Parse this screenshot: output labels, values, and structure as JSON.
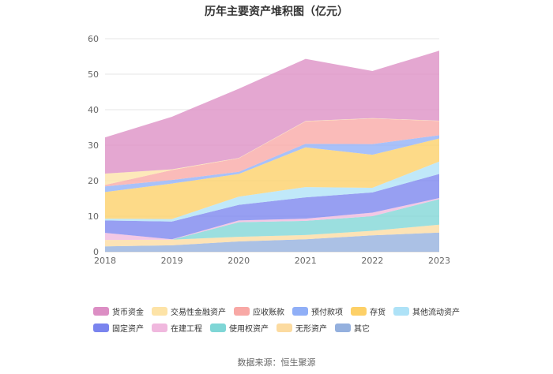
{
  "chart_data": {
    "type": "area",
    "stacked": true,
    "title": "历年主要资产堆积图（亿元）",
    "source_note": "数据来源：恒生聚源",
    "x": [
      "2018",
      "2019",
      "2020",
      "2021",
      "2022",
      "2023"
    ],
    "yticks": [
      "0",
      "10",
      "20",
      "30",
      "40",
      "50",
      "60"
    ],
    "ylim": [
      0,
      60
    ],
    "grid": true,
    "legend_position": "bottom",
    "series": [
      {
        "name": "货币资金",
        "color": "#dc8ec4",
        "values": [
          10.2,
          14.8,
          19.5,
          17.5,
          13.3,
          19.7
        ]
      },
      {
        "name": "交易性金融资产",
        "color": "#fde3a7",
        "values": [
          3.2,
          0.2,
          0.1,
          0.1,
          0.1,
          0.1
        ]
      },
      {
        "name": "应收账款",
        "color": "#f8a8a5",
        "values": [
          0.4,
          2.8,
          3.8,
          6.3,
          7.2,
          4.0
        ]
      },
      {
        "name": "预付款项",
        "color": "#90aff7",
        "values": [
          1.6,
          1.0,
          0.6,
          1.0,
          3.0,
          0.9
        ]
      },
      {
        "name": "存货",
        "color": "#fdd067",
        "values": [
          7.5,
          10.0,
          6.4,
          11.2,
          9.3,
          6.5
        ]
      },
      {
        "name": "其他流动资产",
        "color": "#aee2f7",
        "values": [
          0.5,
          0.7,
          2.3,
          2.9,
          1.3,
          3.5
        ]
      },
      {
        "name": "固定资产",
        "color": "#7a84ee",
        "values": [
          3.5,
          5.0,
          4.4,
          6.0,
          5.7,
          6.8
        ]
      },
      {
        "name": "在建工程",
        "color": "#f0b8de",
        "values": [
          2.0,
          0.1,
          0.5,
          0.6,
          1.0,
          0.3
        ]
      },
      {
        "name": "使用权资产",
        "color": "#7fd6d6",
        "values": [
          0,
          0,
          4.1,
          4.0,
          4.1,
          7.2
        ]
      },
      {
        "name": "无形资产",
        "color": "#fcdba0",
        "values": [
          1.8,
          1.6,
          1.3,
          1.2,
          1.3,
          2.2
        ]
      },
      {
        "name": "其它",
        "color": "#94b0de",
        "values": [
          1.5,
          1.8,
          2.9,
          3.5,
          4.6,
          5.4
        ]
      }
    ]
  }
}
